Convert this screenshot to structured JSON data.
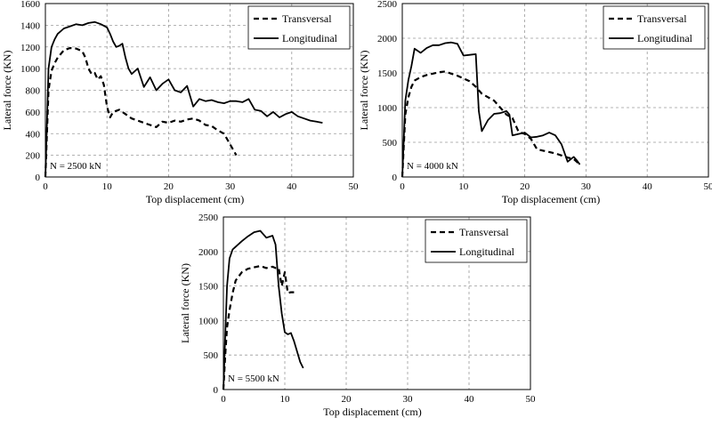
{
  "chart_data": [
    {
      "type": "line",
      "title": "",
      "xlabel": "Top displacement (cm)",
      "ylabel": "Lateral force (KN)",
      "xlim": [
        0,
        50
      ],
      "ylim": [
        0,
        1600
      ],
      "xticks": [
        0,
        10,
        20,
        30,
        40,
        50
      ],
      "yticks": [
        0,
        200,
        400,
        600,
        800,
        1000,
        1200,
        1400,
        1600
      ],
      "grid": true,
      "legend_position": "top-right",
      "annotation": "N = 2500 kN",
      "series": [
        {
          "name": "Transversal",
          "style": "dashed",
          "x": [
            0,
            0.5,
            1,
            1.5,
            2,
            3,
            4,
            5,
            6,
            6.5,
            7,
            7.5,
            8,
            8.5,
            9,
            9.5,
            10,
            10.5,
            11,
            12,
            13,
            14,
            15,
            16,
            17,
            18,
            19,
            20,
            21,
            22,
            23,
            24,
            25,
            26,
            27,
            28,
            29,
            30,
            31
          ],
          "y": [
            0,
            800,
            980,
            1050,
            1100,
            1170,
            1190,
            1185,
            1160,
            1100,
            1000,
            950,
            960,
            900,
            930,
            850,
            650,
            550,
            600,
            620,
            580,
            540,
            520,
            500,
            480,
            460,
            510,
            500,
            520,
            510,
            530,
            540,
            520,
            480,
            470,
            430,
            400,
            300,
            200
          ]
        },
        {
          "name": "Longitudinal",
          "style": "solid",
          "x": [
            0,
            0.5,
            1,
            1.5,
            2,
            3,
            4,
            5,
            6,
            7,
            8,
            9,
            10,
            10.5,
            11,
            11.5,
            12,
            12.5,
            13,
            13.5,
            14,
            15,
            16,
            17,
            18,
            19,
            20,
            21,
            22,
            23,
            24,
            25,
            26,
            27,
            28,
            29,
            30,
            31,
            32,
            33,
            34,
            35,
            36,
            37,
            38,
            39,
            40,
            41,
            42,
            43,
            44,
            45
          ],
          "y": [
            0,
            1000,
            1200,
            1270,
            1320,
            1370,
            1390,
            1410,
            1400,
            1420,
            1430,
            1410,
            1380,
            1320,
            1250,
            1200,
            1210,
            1230,
            1100,
            1000,
            950,
            1000,
            830,
            920,
            800,
            860,
            900,
            800,
            780,
            840,
            650,
            720,
            700,
            710,
            690,
            680,
            700,
            700,
            690,
            720,
            620,
            610,
            560,
            600,
            550,
            580,
            600,
            560,
            540,
            520,
            510,
            500
          ]
        }
      ]
    },
    {
      "type": "line",
      "title": "",
      "xlabel": "Top displacement (cm)",
      "ylabel": "Lateral force (KN)",
      "xlim": [
        0,
        50
      ],
      "ylim": [
        0,
        2500
      ],
      "xticks": [
        0,
        10,
        20,
        30,
        40,
        50
      ],
      "yticks": [
        0,
        500,
        1000,
        1500,
        2000,
        2500
      ],
      "grid": true,
      "legend_position": "top-right",
      "annotation": "N = 4000 kN",
      "series": [
        {
          "name": "Transversal",
          "style": "dashed",
          "x": [
            0,
            0.5,
            1,
            1.5,
            2,
            3,
            4,
            5,
            6,
            7,
            8,
            9,
            10,
            11,
            12,
            13,
            14,
            15,
            16,
            17,
            18,
            19,
            20,
            21,
            22,
            23,
            24,
            25,
            26,
            27,
            28,
            29
          ],
          "y": [
            0,
            900,
            1150,
            1300,
            1390,
            1440,
            1470,
            1490,
            1510,
            1520,
            1490,
            1460,
            1420,
            1380,
            1300,
            1200,
            1150,
            1100,
            1000,
            900,
            850,
            650,
            620,
            550,
            400,
            380,
            360,
            340,
            310,
            280,
            260,
            180
          ]
        },
        {
          "name": "Longitudinal",
          "style": "solid",
          "x": [
            0,
            0.5,
            1,
            1.5,
            2,
            3,
            4,
            5,
            6,
            7,
            8,
            9,
            10,
            11,
            12,
            12.5,
            13,
            14,
            15,
            16,
            17,
            17.5,
            18,
            19,
            20,
            21,
            22,
            23,
            24,
            25,
            26,
            27,
            28,
            28.5,
            29
          ],
          "y": [
            0,
            1100,
            1400,
            1600,
            1850,
            1790,
            1860,
            1900,
            1900,
            1930,
            1940,
            1920,
            1750,
            1760,
            1770,
            950,
            660,
            820,
            910,
            920,
            950,
            900,
            600,
            620,
            640,
            570,
            580,
            600,
            640,
            600,
            470,
            220,
            290,
            240,
            180
          ]
        }
      ]
    },
    {
      "type": "line",
      "title": "",
      "xlabel": "Top displacement (cm)",
      "ylabel": "Lateral force (KN)",
      "xlim": [
        0,
        50
      ],
      "ylim": [
        0,
        2500
      ],
      "xticks": [
        0,
        10,
        20,
        30,
        40,
        50
      ],
      "yticks": [
        0,
        500,
        1000,
        1500,
        2000,
        2500
      ],
      "grid": true,
      "legend_position": "top-right",
      "annotation": "N = 5500 kN",
      "series": [
        {
          "name": "Transversal",
          "style": "dashed",
          "x": [
            0,
            0.3,
            0.6,
            1,
            1.5,
            2,
            3,
            4,
            5,
            6,
            7,
            8,
            8.5,
            9,
            9.5,
            10,
            10.5,
            11,
            11.5
          ],
          "y": [
            0,
            500,
            900,
            1150,
            1400,
            1580,
            1700,
            1750,
            1770,
            1790,
            1760,
            1780,
            1760,
            1760,
            1500,
            1700,
            1400,
            1410,
            1410
          ]
        },
        {
          "name": "Longitudinal",
          "style": "solid",
          "x": [
            0,
            0.3,
            0.6,
            1,
            1.5,
            2,
            3,
            4,
            5,
            6,
            7,
            8,
            8.5,
            9,
            9.5,
            10,
            10.5,
            11,
            11.5,
            12,
            12.5,
            13
          ],
          "y": [
            0,
            800,
            1500,
            1900,
            2030,
            2070,
            2150,
            2220,
            2280,
            2300,
            2200,
            2230,
            2100,
            1500,
            1100,
            830,
            800,
            820,
            700,
            550,
            400,
            310
          ]
        }
      ]
    }
  ]
}
